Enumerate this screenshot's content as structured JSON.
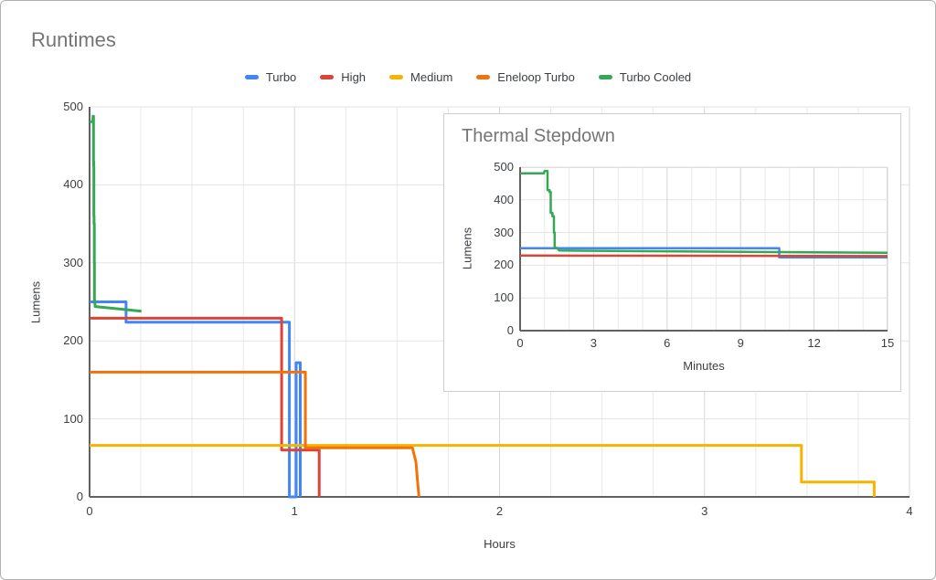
{
  "page": {
    "title": "Runtimes"
  },
  "chart_data": [
    {
      "id": "main",
      "type": "line",
      "title": "Runtimes",
      "xlabel": "Hours",
      "ylabel": "Lumens",
      "xlim": [
        0,
        4
      ],
      "ylim": [
        0,
        500
      ],
      "x_ticks": [
        0,
        1,
        2,
        3,
        4
      ],
      "x_minor_step": 0.25,
      "y_ticks": [
        0,
        100,
        200,
        300,
        400,
        500
      ],
      "grid": true,
      "legend_position": "top",
      "title_color": "#757575",
      "grid_color": "#e3e3e3",
      "axis_color": "#616161",
      "series": [
        {
          "name": "Turbo",
          "color": "#4285f4",
          "points": [
            [
              0,
              250
            ],
            [
              0.178,
              250
            ],
            [
              0.178,
              224
            ],
            [
              0.975,
              224
            ],
            [
              0.975,
              0
            ],
            [
              1.008,
              0
            ],
            [
              1.008,
              172
            ],
            [
              1.028,
              172
            ],
            [
              1.028,
              0
            ]
          ]
        },
        {
          "name": "High",
          "color": "#db4437",
          "points": [
            [
              0,
              229
            ],
            [
              0.937,
              229
            ],
            [
              0.937,
              60
            ],
            [
              1.12,
              60
            ],
            [
              1.12,
              0
            ]
          ]
        },
        {
          "name": "Medium",
          "color": "#f4b400",
          "points": [
            [
              0,
              66
            ],
            [
              3.473,
              66
            ],
            [
              3.473,
              19
            ],
            [
              3.828,
              19
            ],
            [
              3.828,
              0
            ]
          ]
        },
        {
          "name": "Eneloop Turbo",
          "color": "#f2720c",
          "points": [
            [
              0,
              160
            ],
            [
              1.053,
              160
            ],
            [
              1.053,
              63
            ],
            [
              1.575,
              63
            ],
            [
              1.592,
              45
            ],
            [
              1.602,
              15
            ],
            [
              1.607,
              0
            ]
          ]
        },
        {
          "name": "Turbo Cooled",
          "color": "#34a853",
          "points": [
            [
              0,
              481
            ],
            [
              0.016,
              481
            ],
            [
              0.017,
              488
            ],
            [
              0.019,
              488
            ],
            [
              0.019,
              430
            ],
            [
              0.02,
              430
            ],
            [
              0.02,
              424
            ],
            [
              0.021,
              424
            ],
            [
              0.021,
              360
            ],
            [
              0.022,
              360
            ],
            [
              0.022,
              350
            ],
            [
              0.023,
              350
            ],
            [
              0.023,
              300
            ],
            [
              0.0235,
              300
            ],
            [
              0.0235,
              252
            ],
            [
              0.025,
              252
            ],
            [
              0.027,
              244
            ],
            [
              0.253,
              238
            ]
          ]
        }
      ]
    },
    {
      "id": "inset",
      "type": "line",
      "title": "Thermal Stepdown",
      "xlabel": "Minutes",
      "ylabel": "Lumens",
      "xlim": [
        0,
        15
      ],
      "ylim": [
        0,
        500
      ],
      "x_ticks": [
        0,
        3,
        6,
        9,
        12,
        15
      ],
      "x_minor_step": 1,
      "y_ticks": [
        0,
        100,
        200,
        300,
        400,
        500
      ],
      "grid": true,
      "legend_position": "none",
      "title_color": "#757575",
      "grid_color": "#e3e3e3",
      "axis_color": "#616161",
      "series": [
        {
          "name": "Turbo",
          "color": "#4285f4",
          "points": [
            [
              0,
              252
            ],
            [
              10.58,
              252
            ],
            [
              10.58,
              224
            ],
            [
              15,
              224
            ]
          ]
        },
        {
          "name": "High",
          "color": "#db4437",
          "points": [
            [
              0,
              230
            ],
            [
              15,
              228
            ]
          ]
        },
        {
          "name": "Turbo Cooled",
          "color": "#34a853",
          "points": [
            [
              0,
              481
            ],
            [
              0.97,
              481
            ],
            [
              1.0,
              488
            ],
            [
              1.12,
              488
            ],
            [
              1.12,
              430
            ],
            [
              1.2,
              430
            ],
            [
              1.2,
              424
            ],
            [
              1.25,
              424
            ],
            [
              1.25,
              360
            ],
            [
              1.32,
              360
            ],
            [
              1.32,
              350
            ],
            [
              1.38,
              350
            ],
            [
              1.38,
              300
            ],
            [
              1.41,
              300
            ],
            [
              1.41,
              253
            ],
            [
              1.5,
              253
            ],
            [
              1.6,
              245
            ],
            [
              15,
              238
            ]
          ]
        }
      ]
    }
  ]
}
